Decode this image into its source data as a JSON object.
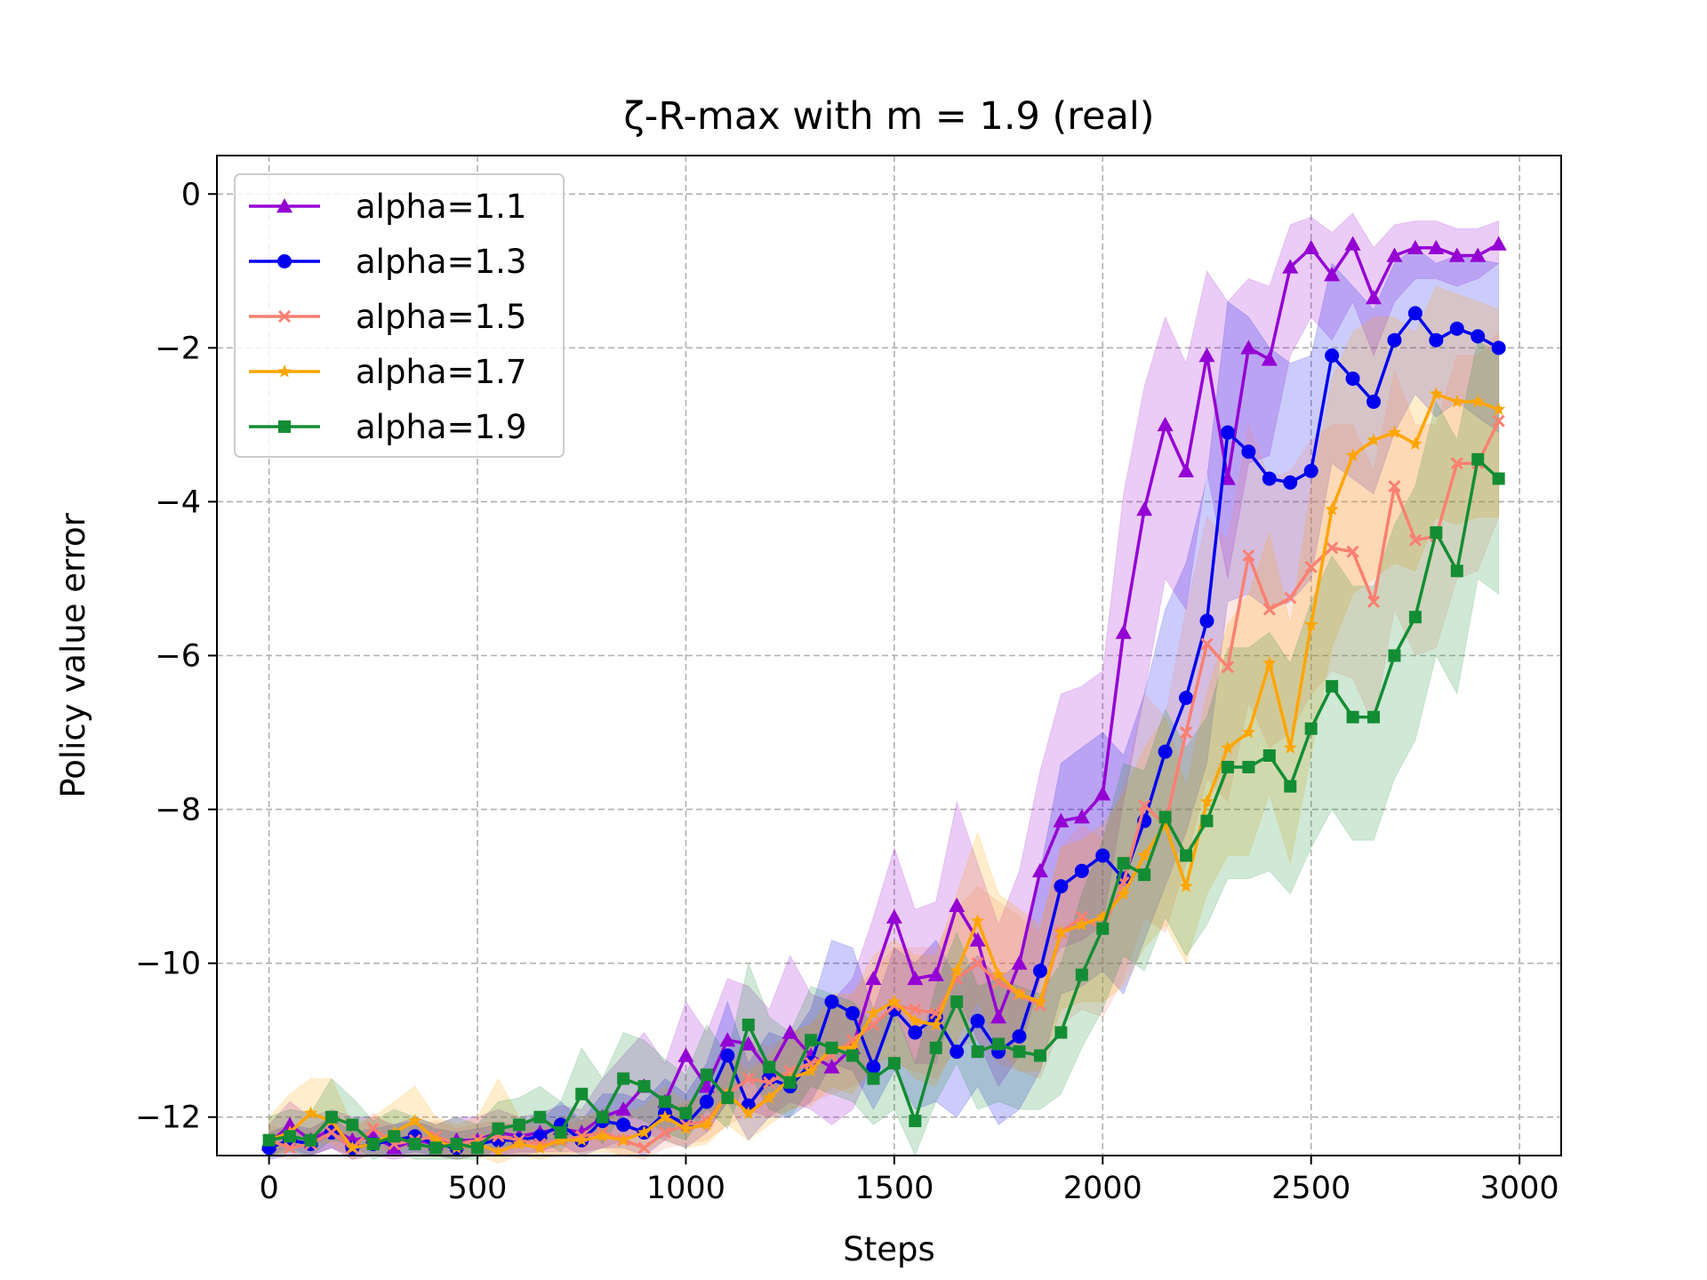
{
  "chart_data": {
    "type": "line",
    "title": "ζ-R-max with m = 1.9 (real)",
    "xlabel": "Steps",
    "ylabel": "Policy value error",
    "xlim": [
      -125,
      3100
    ],
    "ylim": [
      -12.5,
      0.5
    ],
    "xticks": [
      0,
      500,
      1000,
      1500,
      2000,
      2500,
      3000
    ],
    "yticks": [
      0,
      -2,
      -4,
      -6,
      -8,
      -10,
      -12
    ],
    "xtick_labels": [
      "0",
      "500",
      "1000",
      "1500",
      "2000",
      "2500",
      "3000"
    ],
    "ytick_labels": [
      "0",
      "−2",
      "−4",
      "−6",
      "−8",
      "−10",
      "−12"
    ],
    "grid": true,
    "legend_position": "top-left",
    "x": [
      0,
      50,
      100,
      150,
      200,
      250,
      300,
      350,
      400,
      450,
      500,
      550,
      600,
      650,
      700,
      750,
      800,
      850,
      900,
      950,
      1000,
      1050,
      1100,
      1150,
      1200,
      1250,
      1300,
      1350,
      1400,
      1450,
      1500,
      1550,
      1600,
      1650,
      1700,
      1750,
      1800,
      1850,
      1900,
      1950,
      2000,
      2050,
      2100,
      2150,
      2200,
      2250,
      2300,
      2350,
      2400,
      2450,
      2500,
      2550,
      2600,
      2650,
      2700,
      2750,
      2800,
      2850,
      2900,
      2950
    ],
    "series": [
      {
        "name": "alpha=1.1",
        "color": "#9400d3",
        "marker": "triangle",
        "values": [
          -12.35,
          -12.1,
          -12.3,
          -12.15,
          -12.3,
          -12.25,
          -12.4,
          -12.3,
          -12.35,
          -12.3,
          -12.3,
          -12.2,
          -12.25,
          -12.2,
          -12.15,
          -12.2,
          -12.0,
          -11.9,
          -11.6,
          -11.8,
          -11.2,
          -11.6,
          -11.0,
          -11.05,
          -11.4,
          -10.9,
          -11.2,
          -11.35,
          -11.1,
          -10.2,
          -9.4,
          -10.2,
          -10.15,
          -9.25,
          -9.7,
          -10.7,
          -10.0,
          -8.8,
          -8.15,
          -8.1,
          -7.8,
          -5.7,
          -4.1,
          -3.0,
          -3.6,
          -2.1,
          -3.7,
          -2.0,
          -2.15,
          -0.95,
          -0.7,
          -1.05,
          -0.65,
          -1.35,
          -0.8,
          -0.7,
          -0.7,
          -0.8,
          -0.8,
          -0.65
        ],
        "lower": [
          -12.5,
          -12.4,
          -12.5,
          -12.4,
          -12.5,
          -12.5,
          -12.55,
          -12.5,
          -12.5,
          -12.5,
          -12.5,
          -12.5,
          -12.45,
          -12.45,
          -12.45,
          -12.45,
          -12.4,
          -12.3,
          -12.2,
          -12.3,
          -11.9,
          -12.2,
          -11.8,
          -11.9,
          -12.0,
          -11.8,
          -11.9,
          -12.1,
          -11.9,
          -11.3,
          -10.6,
          -11.3,
          -11.3,
          -10.4,
          -11.0,
          -11.6,
          -11.2,
          -10.2,
          -9.8,
          -9.7,
          -9.5,
          -7.9,
          -6.5,
          -5.0,
          -5.4,
          -3.6,
          -5.0,
          -3.5,
          -3.4,
          -2.1,
          -1.6,
          -1.9,
          -1.4,
          -2.1,
          -1.4,
          -1.1,
          -1.1,
          -1.2,
          -1.1,
          -0.9
        ],
        "upper": [
          -12.1,
          -11.8,
          -12.0,
          -11.9,
          -12.0,
          -12.0,
          -12.1,
          -12.0,
          -12.1,
          -12.0,
          -12.0,
          -11.9,
          -12.0,
          -11.95,
          -11.85,
          -11.9,
          -11.5,
          -11.2,
          -10.9,
          -11.3,
          -10.5,
          -10.9,
          -10.2,
          -10.3,
          -10.6,
          -9.9,
          -10.4,
          -10.5,
          -10.2,
          -9.4,
          -8.5,
          -9.3,
          -9.2,
          -7.9,
          -8.7,
          -9.5,
          -8.8,
          -7.5,
          -6.5,
          -6.4,
          -6.2,
          -3.9,
          -2.5,
          -1.6,
          -2.2,
          -1.0,
          -1.4,
          -1.1,
          -1.2,
          -0.4,
          -0.3,
          -0.5,
          -0.25,
          -0.7,
          -0.4,
          -0.35,
          -0.35,
          -0.45,
          -0.45,
          -0.35
        ]
      },
      {
        "name": "alpha=1.3",
        "color": "#0000ee",
        "marker": "circle",
        "values": [
          -12.4,
          -12.3,
          -12.35,
          -12.2,
          -12.4,
          -12.35,
          -12.3,
          -12.25,
          -12.35,
          -12.4,
          -12.35,
          -12.3,
          -12.3,
          -12.25,
          -12.1,
          -12.3,
          -12.05,
          -12.1,
          -12.2,
          -11.95,
          -12.1,
          -11.8,
          -11.2,
          -11.85,
          -11.5,
          -11.6,
          -11.3,
          -10.5,
          -10.65,
          -11.35,
          -10.6,
          -10.9,
          -10.7,
          -11.15,
          -10.75,
          -11.15,
          -10.95,
          -10.1,
          -9.0,
          -8.8,
          -8.6,
          -8.9,
          -8.15,
          -7.25,
          -6.55,
          -5.55,
          -3.1,
          -3.35,
          -3.7,
          -3.75,
          -3.6,
          -2.1,
          -2.4,
          -2.7,
          -1.9,
          -1.55,
          -1.9,
          -1.75,
          -1.85,
          -2.0
        ],
        "lower": [
          -12.55,
          -12.5,
          -12.5,
          -12.4,
          -12.55,
          -12.5,
          -12.5,
          -12.45,
          -12.5,
          -12.55,
          -12.5,
          -12.5,
          -12.5,
          -12.45,
          -12.35,
          -12.5,
          -12.4,
          -12.4,
          -12.5,
          -12.3,
          -12.4,
          -12.2,
          -11.8,
          -12.3,
          -12.0,
          -12.0,
          -11.8,
          -11.3,
          -11.4,
          -11.9,
          -11.4,
          -11.9,
          -11.8,
          -12.0,
          -11.6,
          -12.1,
          -11.9,
          -11.4,
          -10.4,
          -10.3,
          -10.1,
          -10.4,
          -9.7,
          -9.0,
          -8.3,
          -7.4,
          -5.3,
          -5.2,
          -5.4,
          -5.3,
          -5.0,
          -3.5,
          -3.7,
          -3.9,
          -3.1,
          -2.6,
          -2.9,
          -2.7,
          -2.9,
          -3.1
        ],
        "upper": [
          -12.2,
          -12.1,
          -12.15,
          -12.0,
          -12.2,
          -12.15,
          -12.1,
          -12.05,
          -12.15,
          -12.2,
          -12.15,
          -12.1,
          -12.1,
          -12.05,
          -11.8,
          -12.05,
          -11.7,
          -11.7,
          -11.8,
          -11.5,
          -11.7,
          -11.3,
          -10.5,
          -11.3,
          -10.9,
          -11.0,
          -10.6,
          -9.7,
          -9.8,
          -10.6,
          -9.8,
          -10.0,
          -9.7,
          -10.2,
          -9.9,
          -10.2,
          -10.0,
          -8.8,
          -7.4,
          -7.2,
          -7.0,
          -7.3,
          -6.5,
          -5.4,
          -4.8,
          -3.7,
          -1.4,
          -1.6,
          -2.0,
          -2.2,
          -2.1,
          -0.9,
          -1.2,
          -1.5,
          -0.9,
          -0.7,
          -0.9,
          -0.8,
          -0.85,
          -0.9
        ]
      },
      {
        "name": "alpha=1.5",
        "color": "#fa8072",
        "marker": "x",
        "values": [
          -12.3,
          -12.4,
          -12.35,
          -12.2,
          -12.4,
          -12.15,
          -12.35,
          -12.3,
          -12.25,
          -12.35,
          -12.3,
          -12.25,
          -12.3,
          -12.35,
          -12.3,
          -12.25,
          -12.2,
          -12.3,
          -12.4,
          -12.2,
          -12.1,
          -12.05,
          -11.7,
          -11.5,
          -11.55,
          -11.4,
          -11.3,
          -11.2,
          -11.0,
          -10.8,
          -10.55,
          -10.6,
          -10.65,
          -10.2,
          -10.0,
          -10.25,
          -10.4,
          -10.55,
          -9.6,
          -9.4,
          -9.55,
          -8.95,
          -7.95,
          -8.2,
          -7.0,
          -5.85,
          -6.15,
          -4.7,
          -5.4,
          -5.25,
          -4.85,
          -4.6,
          -4.65,
          -5.3,
          -3.8,
          -4.5,
          -4.45,
          -3.5,
          -3.5,
          -2.95
        ],
        "lower": [
          -12.5,
          -12.55,
          -12.5,
          -12.4,
          -12.55,
          -12.35,
          -12.5,
          -12.5,
          -12.45,
          -12.5,
          -12.5,
          -12.45,
          -12.5,
          -12.5,
          -12.5,
          -12.45,
          -12.4,
          -12.5,
          -12.55,
          -12.4,
          -12.35,
          -12.3,
          -12.1,
          -11.95,
          -12.0,
          -11.9,
          -11.8,
          -11.7,
          -11.6,
          -11.4,
          -11.3,
          -11.4,
          -11.5,
          -11.1,
          -11.0,
          -11.3,
          -11.4,
          -11.5,
          -10.8,
          -10.6,
          -10.7,
          -10.2,
          -9.4,
          -9.6,
          -8.7,
          -7.6,
          -7.9,
          -6.6,
          -7.2,
          -7.0,
          -6.5,
          -6.2,
          -6.3,
          -6.9,
          -5.4,
          -6.0,
          -5.9,
          -5.0,
          -4.9,
          -4.2
        ],
        "upper": [
          -12.1,
          -12.2,
          -12.15,
          -12.0,
          -12.2,
          -11.95,
          -12.15,
          -12.1,
          -12.05,
          -12.15,
          -12.1,
          -12.05,
          -12.1,
          -12.15,
          -12.1,
          -12.05,
          -11.95,
          -12.05,
          -12.2,
          -11.95,
          -11.8,
          -11.7,
          -11.3,
          -11.0,
          -11.1,
          -10.9,
          -10.8,
          -10.6,
          -10.4,
          -10.1,
          -9.8,
          -9.8,
          -9.8,
          -9.3,
          -9.0,
          -9.2,
          -9.4,
          -9.6,
          -8.5,
          -8.2,
          -8.4,
          -7.7,
          -6.5,
          -6.8,
          -5.4,
          -4.2,
          -4.5,
          -3.0,
          -3.7,
          -3.6,
          -3.2,
          -3.0,
          -3.0,
          -3.6,
          -2.3,
          -3.0,
          -3.0,
          -2.1,
          -2.1,
          -1.8
        ]
      },
      {
        "name": "alpha=1.7",
        "color": "#ffa500",
        "marker": "star",
        "values": [
          -12.3,
          -12.2,
          -11.95,
          -12.05,
          -12.4,
          -12.35,
          -12.2,
          -12.05,
          -12.3,
          -12.4,
          -12.35,
          -12.45,
          -12.35,
          -12.4,
          -12.3,
          -12.3,
          -12.25,
          -12.3,
          -12.2,
          -12.0,
          -12.15,
          -12.1,
          -11.7,
          -11.95,
          -11.75,
          -11.5,
          -11.4,
          -11.1,
          -11.1,
          -10.65,
          -10.5,
          -10.75,
          -10.8,
          -10.1,
          -9.45,
          -10.15,
          -10.4,
          -10.5,
          -9.6,
          -9.5,
          -9.4,
          -9.1,
          -8.6,
          -8.2,
          -9.0,
          -7.9,
          -7.2,
          -7.0,
          -6.1,
          -7.2,
          -5.6,
          -4.1,
          -3.4,
          -3.2,
          -3.1,
          -3.25,
          -2.6,
          -2.7,
          -2.7,
          -2.8
        ],
        "lower": [
          -12.5,
          -12.45,
          -12.3,
          -12.35,
          -12.55,
          -12.5,
          -12.45,
          -12.35,
          -12.5,
          -12.55,
          -12.5,
          -12.6,
          -12.5,
          -12.55,
          -12.5,
          -12.5,
          -12.45,
          -12.5,
          -12.45,
          -12.3,
          -12.4,
          -12.35,
          -12.1,
          -12.3,
          -12.1,
          -11.9,
          -11.85,
          -11.6,
          -11.7,
          -11.3,
          -11.2,
          -11.5,
          -11.6,
          -11.0,
          -10.5,
          -11.1,
          -11.4,
          -11.4,
          -10.6,
          -10.5,
          -10.5,
          -10.3,
          -9.8,
          -9.5,
          -10.0,
          -9.1,
          -8.6,
          -8.6,
          -7.8,
          -8.7,
          -7.3,
          -5.9,
          -5.2,
          -5.0,
          -4.8,
          -4.9,
          -4.2,
          -4.3,
          -4.2,
          -4.2
        ],
        "upper": [
          -12.0,
          -11.7,
          -11.5,
          -11.5,
          -12.1,
          -12.0,
          -11.8,
          -11.6,
          -12.0,
          -12.1,
          -12.0,
          -11.5,
          -12.0,
          -12.1,
          -12.0,
          -12.0,
          -11.9,
          -11.95,
          -11.85,
          -11.6,
          -11.8,
          -11.7,
          -11.2,
          -11.4,
          -11.2,
          -10.9,
          -10.8,
          -10.4,
          -10.4,
          -9.9,
          -9.7,
          -9.9,
          -9.9,
          -9.1,
          -8.3,
          -9.1,
          -9.3,
          -9.5,
          -8.5,
          -8.4,
          -8.2,
          -7.8,
          -7.2,
          -6.8,
          -7.7,
          -6.5,
          -5.6,
          -5.2,
          -4.4,
          -5.6,
          -3.8,
          -2.4,
          -1.8,
          -1.6,
          -1.6,
          -1.8,
          -1.2,
          -1.3,
          -1.4,
          -1.5
        ]
      },
      {
        "name": "alpha=1.9",
        "color": "#138d34",
        "marker": "square",
        "values": [
          -12.3,
          -12.25,
          -12.3,
          -12.0,
          -12.1,
          -12.35,
          -12.25,
          -12.35,
          -12.4,
          -12.35,
          -12.4,
          -12.15,
          -12.1,
          -12.0,
          -12.2,
          -11.7,
          -12.0,
          -11.5,
          -11.6,
          -11.8,
          -11.95,
          -11.45,
          -11.75,
          -10.8,
          -11.35,
          -11.55,
          -11.0,
          -11.1,
          -11.2,
          -11.5,
          -11.3,
          -12.05,
          -11.1,
          -10.5,
          -11.15,
          -11.05,
          -11.15,
          -11.2,
          -10.9,
          -10.15,
          -9.55,
          -8.7,
          -8.85,
          -8.1,
          -8.6,
          -8.15,
          -7.45,
          -7.45,
          -7.3,
          -7.7,
          -6.95,
          -6.4,
          -6.8,
          -6.8,
          -6.0,
          -5.5,
          -4.4,
          -4.9,
          -3.45,
          -3.7
        ],
        "lower": [
          -12.5,
          -12.45,
          -12.5,
          -12.3,
          -12.35,
          -12.55,
          -12.45,
          -12.55,
          -12.55,
          -12.55,
          -12.55,
          -12.4,
          -12.35,
          -12.3,
          -12.45,
          -12.1,
          -12.35,
          -11.95,
          -12.05,
          -12.2,
          -12.3,
          -11.9,
          -12.15,
          -11.4,
          -11.9,
          -12.0,
          -11.6,
          -11.7,
          -11.8,
          -12.1,
          -11.9,
          -12.5,
          -11.8,
          -11.3,
          -11.9,
          -11.8,
          -11.9,
          -11.9,
          -11.7,
          -11.1,
          -10.6,
          -9.9,
          -10.1,
          -9.4,
          -9.9,
          -9.5,
          -8.9,
          -8.9,
          -8.8,
          -9.1,
          -8.5,
          -8.0,
          -8.4,
          -8.4,
          -7.6,
          -7.1,
          -6.0,
          -6.5,
          -5.0,
          -5.2
        ],
        "upper": [
          -12.0,
          -11.9,
          -11.95,
          -11.5,
          -11.75,
          -12.05,
          -11.9,
          -12.0,
          -12.1,
          -12.0,
          -12.1,
          -11.8,
          -11.75,
          -11.6,
          -11.8,
          -11.1,
          -11.5,
          -10.9,
          -11.0,
          -11.25,
          -11.45,
          -10.8,
          -11.2,
          -10.0,
          -10.7,
          -10.9,
          -10.3,
          -10.4,
          -10.5,
          -10.8,
          -10.6,
          -11.3,
          -10.3,
          -9.6,
          -10.3,
          -10.2,
          -10.3,
          -10.4,
          -10.0,
          -9.1,
          -8.4,
          -7.4,
          -7.5,
          -6.7,
          -7.2,
          -6.8,
          -5.9,
          -5.9,
          -5.7,
          -6.1,
          -5.3,
          -4.7,
          -5.1,
          -5.1,
          -4.3,
          -3.8,
          -2.7,
          -3.2,
          -1.9,
          -2.1
        ]
      }
    ]
  }
}
